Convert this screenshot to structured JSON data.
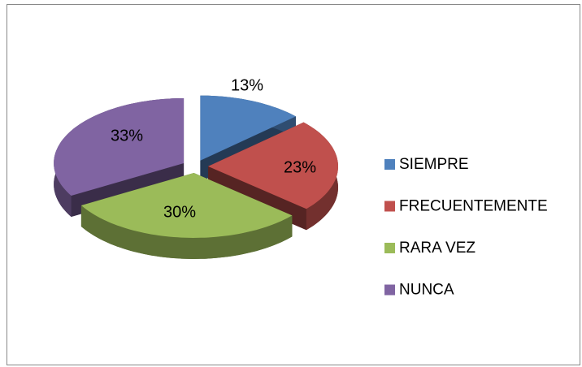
{
  "chart_data": {
    "type": "pie",
    "categories": [
      "SIEMPRE",
      "FRECUENTEMENTE",
      "RARA VEZ",
      "NUNCA"
    ],
    "values": [
      13,
      23,
      30,
      33
    ],
    "value_labels": [
      "13%",
      "23%",
      "30%",
      "33%"
    ],
    "colors": [
      "#4f81bd",
      "#c0504d",
      "#9bbb59",
      "#8064a2"
    ],
    "legend": "right"
  }
}
